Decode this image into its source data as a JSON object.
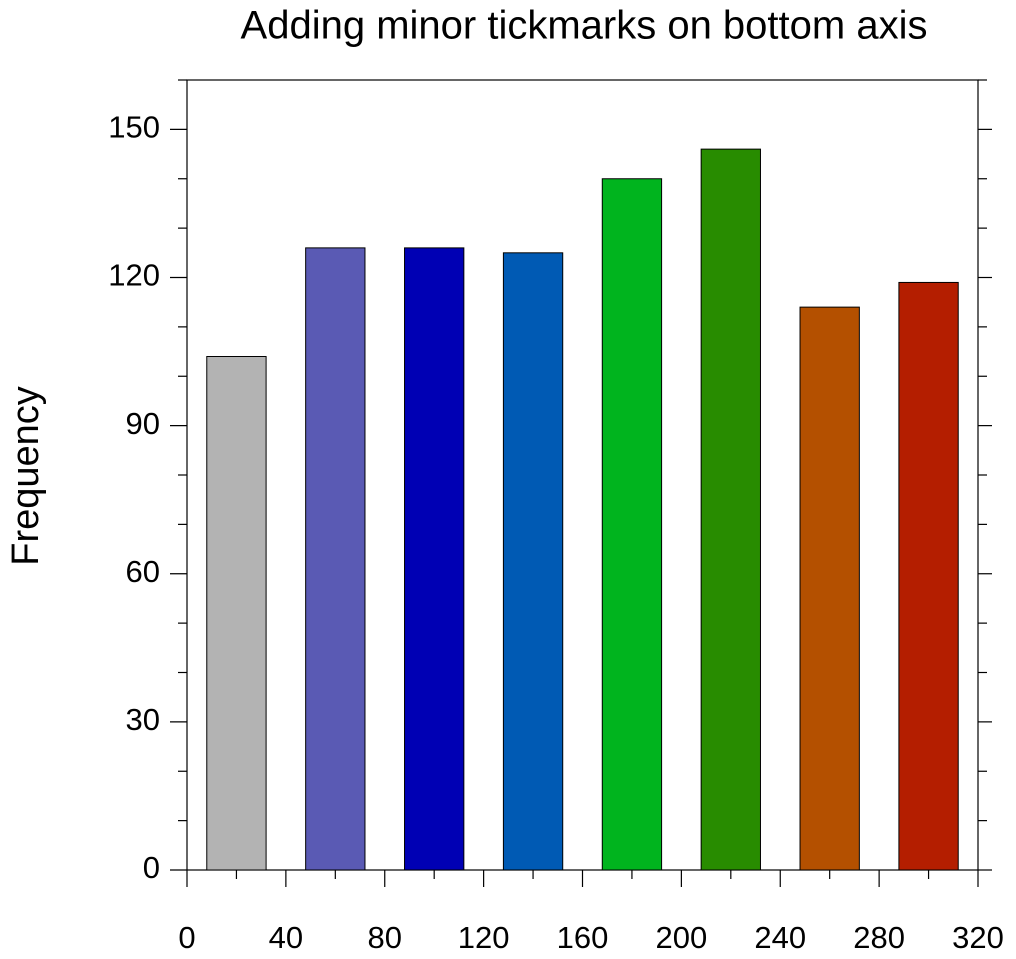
{
  "chart_data": {
    "type": "histogram",
    "title": "Adding minor tickmarks on bottom axis",
    "y_label": "Frequency",
    "bins": [
      0,
      40,
      80,
      120,
      160,
      200,
      240,
      280,
      320
    ],
    "values": [
      104,
      126,
      126,
      125,
      140,
      146,
      114,
      119
    ],
    "colors": [
      "#b3b3b3",
      "#5a5ab4",
      "#0000b4",
      "#005ab4",
      "#00b41e",
      "#288c00",
      "#b45000",
      "#b41e00"
    ],
    "xlim": [
      0,
      320
    ],
    "xticks": [
      0,
      40,
      80,
      120,
      160,
      200,
      240,
      280,
      320
    ],
    "xminorticks": [
      20,
      60,
      100,
      140,
      180,
      220,
      260,
      300
    ],
    "ylim": [
      0,
      160
    ],
    "yticks": [
      0,
      30,
      60,
      90,
      120,
      150
    ],
    "yminorticks": [
      10,
      20,
      40,
      50,
      70,
      80,
      100,
      110,
      130,
      140,
      160
    ]
  }
}
